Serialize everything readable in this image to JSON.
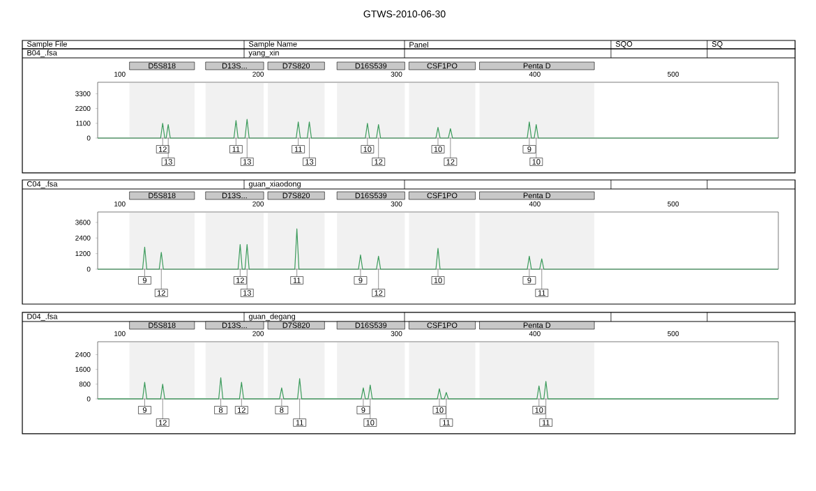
{
  "chart_data": [
    {
      "type": "line",
      "title": "GTWS-2010-06-30",
      "xlim": [
        84,
        576
      ],
      "xticks": [
        100,
        200,
        300,
        400,
        500
      ],
      "ylim": [
        0,
        4150
      ],
      "yticks": [
        0,
        1100,
        2200,
        3300
      ],
      "series": [
        {
          "color": "#3a9a5a",
          "x": [
            84,
            129.5,
            131,
            132.5,
            133.5,
            135,
            136.5,
            182.5,
            184,
            185.5,
            190.5,
            192,
            193.5,
            227.5,
            229,
            230.5,
            235.5,
            237,
            238.5,
            277.5,
            279,
            280.5,
            285.5,
            287,
            288.5,
            328.5,
            330,
            331.5,
            337.5,
            339,
            340.5,
            394.5,
            396,
            397.5,
            399.5,
            401,
            402.5,
            576
          ],
          "values": [
            0,
            0,
            1100,
            0,
            0,
            1000,
            0,
            0,
            1300,
            0,
            0,
            1400,
            0,
            0,
            1200,
            0,
            0,
            1200,
            0,
            0,
            1100,
            0,
            0,
            1000,
            0,
            0,
            800,
            0,
            0,
            700,
            0,
            0,
            1200,
            0,
            0,
            1000,
            0,
            0
          ]
        }
      ],
      "bands": [
        {
          "axis": "x",
          "from": 107,
          "to": 154,
          "label": "D5S818",
          "color": "#c8c8c8"
        },
        {
          "axis": "x",
          "from": 162,
          "to": 204,
          "label": "D13S...",
          "color": "#c8c8c8"
        },
        {
          "axis": "x",
          "from": 207,
          "to": 248,
          "label": "D7S820",
          "color": "#c8c8c8"
        },
        {
          "axis": "x",
          "from": 257,
          "to": 306,
          "label": "D16S539",
          "color": "#c8c8c8"
        },
        {
          "axis": "x",
          "from": 309,
          "to": 357,
          "label": "CSF1PO",
          "color": "#c8c8c8"
        },
        {
          "axis": "x",
          "from": 360,
          "to": 443,
          "label": "Penta D",
          "color": "#c8c8c8"
        }
      ],
      "annotations": [
        "Sample File",
        "Sample Name",
        "Panel",
        "SQO",
        "SQ",
        "B04_.fsa",
        "yang_xin",
        {
          "text": "12",
          "x": 131,
          "y": 0
        },
        {
          "text": "13",
          "x": 135,
          "y": 0
        },
        {
          "text": "11",
          "x": 184,
          "y": 0
        },
        {
          "text": "13",
          "x": 192,
          "y": 0
        },
        {
          "text": "11",
          "x": 229,
          "y": 0
        },
        {
          "text": "13",
          "x": 237,
          "y": 0
        },
        {
          "text": "10",
          "x": 279,
          "y": 0
        },
        {
          "text": "12",
          "x": 287,
          "y": 0
        },
        {
          "text": "10",
          "x": 330,
          "y": 0
        },
        {
          "text": "12",
          "x": 339,
          "y": 0
        },
        {
          "text": "9",
          "x": 396,
          "y": 0
        },
        {
          "text": "10",
          "x": 401,
          "y": 0
        }
      ]
    },
    {
      "type": "line",
      "xlim": [
        84,
        576
      ],
      "xticks": [
        100,
        200,
        300,
        400,
        500
      ],
      "ylim": [
        0,
        4400
      ],
      "yticks": [
        0,
        1200,
        2400,
        3600
      ],
      "series": [
        {
          "color": "#3a9a5a",
          "x": [
            84,
            116.5,
            118,
            119.5,
            128.5,
            130,
            131.5,
            185.5,
            187,
            188.5,
            190.5,
            192,
            193.5,
            226.5,
            228,
            229.5,
            272.5,
            274,
            275.5,
            285.5,
            287,
            288.5,
            328.5,
            330,
            331.5,
            394.5,
            396,
            397.5,
            403.5,
            405,
            406.5,
            576
          ],
          "values": [
            0,
            0,
            1700,
            0,
            0,
            1300,
            0,
            0,
            1900,
            0,
            0,
            1900,
            0,
            0,
            3100,
            0,
            0,
            1100,
            0,
            0,
            1000,
            0,
            0,
            1600,
            0,
            0,
            1000,
            0,
            0,
            800,
            0,
            0
          ]
        }
      ],
      "bands": [
        {
          "axis": "x",
          "from": 107,
          "to": 154,
          "label": "D5S818",
          "color": "#c8c8c8"
        },
        {
          "axis": "x",
          "from": 162,
          "to": 204,
          "label": "D13S...",
          "color": "#c8c8c8"
        },
        {
          "axis": "x",
          "from": 207,
          "to": 248,
          "label": "D7S820",
          "color": "#c8c8c8"
        },
        {
          "axis": "x",
          "from": 257,
          "to": 306,
          "label": "D16S539",
          "color": "#c8c8c8"
        },
        {
          "axis": "x",
          "from": 309,
          "to": 357,
          "label": "CSF1PO",
          "color": "#c8c8c8"
        },
        {
          "axis": "x",
          "from": 360,
          "to": 443,
          "label": "Penta D",
          "color": "#c8c8c8"
        }
      ],
      "annotations": [
        "C04_.fsa",
        "guan_xiaodong",
        {
          "text": "9",
          "x": 118,
          "y": 0
        },
        {
          "text": "12",
          "x": 130,
          "y": 0
        },
        {
          "text": "12",
          "x": 187,
          "y": 0
        },
        {
          "text": "13",
          "x": 192,
          "y": 0
        },
        {
          "text": "11",
          "x": 228,
          "y": 0
        },
        {
          "text": "9",
          "x": 274,
          "y": 0
        },
        {
          "text": "12",
          "x": 287,
          "y": 0
        },
        {
          "text": "10",
          "x": 330,
          "y": 0
        },
        {
          "text": "9",
          "x": 396,
          "y": 0
        },
        {
          "text": "11",
          "x": 405,
          "y": 0
        }
      ]
    },
    {
      "type": "line",
      "xlim": [
        84,
        576
      ],
      "xticks": [
        100,
        200,
        300,
        400,
        500
      ],
      "ylim": [
        0,
        3100
      ],
      "yticks": [
        0,
        800,
        1600,
        2400
      ],
      "series": [
        {
          "color": "#3a9a5a",
          "x": [
            84,
            116.5,
            118,
            119.5,
            129.5,
            131,
            132.5,
            171.5,
            173,
            174.5,
            186.5,
            188,
            189.5,
            215.5,
            217,
            218.5,
            228.5,
            230,
            231.5,
            274.5,
            276,
            277.5,
            279.5,
            281,
            282.5,
            329.5,
            331,
            332.5,
            334.5,
            336,
            337.5,
            401.5,
            403,
            404.5,
            406.5,
            408,
            409.5,
            576
          ],
          "values": [
            0,
            0,
            900,
            0,
            0,
            800,
            0,
            0,
            1150,
            0,
            0,
            900,
            0,
            0,
            600,
            0,
            0,
            1100,
            0,
            0,
            600,
            0,
            0,
            750,
            0,
            0,
            550,
            0,
            0,
            350,
            0,
            0,
            700,
            0,
            0,
            950,
            0,
            0
          ]
        }
      ],
      "bands": [
        {
          "axis": "x",
          "from": 107,
          "to": 154,
          "label": "D5S818",
          "color": "#c8c8c8"
        },
        {
          "axis": "x",
          "from": 162,
          "to": 204,
          "label": "D13S...",
          "color": "#c8c8c8"
        },
        {
          "axis": "x",
          "from": 207,
          "to": 248,
          "label": "D7S820",
          "color": "#c8c8c8"
        },
        {
          "axis": "x",
          "from": 257,
          "to": 306,
          "label": "D16S539",
          "color": "#c8c8c8"
        },
        {
          "axis": "x",
          "from": 309,
          "to": 357,
          "label": "CSF1PO",
          "color": "#c8c8c8"
        },
        {
          "axis": "x",
          "from": 360,
          "to": 443,
          "label": "Penta D",
          "color": "#c8c8c8"
        }
      ],
      "annotations": [
        "D04_.fsa",
        "guan_degang",
        {
          "text": "9",
          "x": 118,
          "y": 0
        },
        {
          "text": "12",
          "x": 131,
          "y": 0
        },
        {
          "text": "8",
          "x": 173,
          "y": 0
        },
        {
          "text": "12",
          "x": 188,
          "y": 0
        },
        {
          "text": "8",
          "x": 217,
          "y": 0
        },
        {
          "text": "11",
          "x": 230,
          "y": 0
        },
        {
          "text": "9",
          "x": 276,
          "y": 0
        },
        {
          "text": "10",
          "x": 281,
          "y": 0
        },
        {
          "text": "10",
          "x": 331,
          "y": 0
        },
        {
          "text": "11",
          "x": 336,
          "y": 0
        },
        {
          "text": "10",
          "x": 403,
          "y": 0
        },
        {
          "text": "11",
          "x": 408,
          "y": 0
        }
      ]
    }
  ]
}
